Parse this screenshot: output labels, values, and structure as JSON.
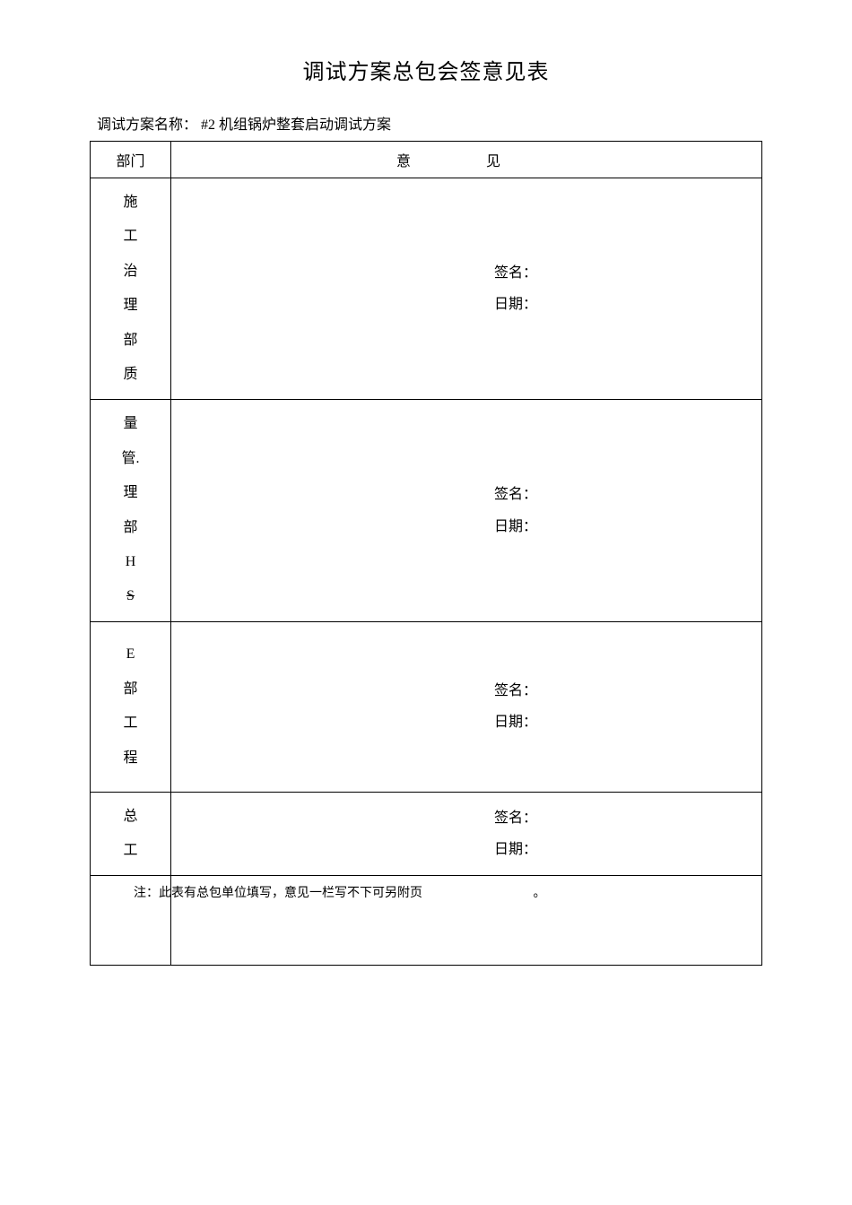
{
  "title": "调试方案总包会签意见表",
  "subtitle_label": "调试方案名称：",
  "subtitle_value": "#2  机组锅炉整套启动调试方案",
  "header": {
    "dept": "部门",
    "opinion": "意    见"
  },
  "rows": [
    {
      "dept_chars": [
        "施",
        "工",
        "治",
        "理",
        "部",
        "质"
      ],
      "signature": "签名：",
      "date": "日期："
    },
    {
      "dept_chars": [
        "量",
        "管.",
        "理",
        "部",
        "H",
        "S"
      ],
      "signature": "签名：",
      "date": "日期："
    },
    {
      "dept_chars": [
        "E",
        "部",
        "工",
        "程"
      ],
      "signature": "签名：",
      "date": "日期："
    },
    {
      "dept_chars": [
        "总",
        "工"
      ],
      "signature": "签名：",
      "date": "日期："
    }
  ],
  "note": "注：此表有总包单位填写，意见一栏写不下可另附页",
  "note_period": "。"
}
